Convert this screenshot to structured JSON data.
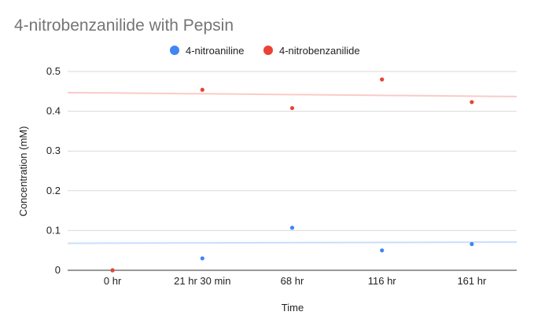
{
  "chart_data": {
    "type": "scatter",
    "title": "4-nitrobenzanilide with Pepsin",
    "xlabel": "Time",
    "ylabel": "Concentration (mM)",
    "categories": [
      "0 hr",
      "21 hr 30 min",
      "68 hr",
      "116 hr",
      "161 hr"
    ],
    "ylim": [
      0,
      0.5
    ],
    "yticks": [
      "0",
      "0.1",
      "0.2",
      "0.3",
      "0.4",
      "0.5"
    ],
    "grid": true,
    "legend_position": "top",
    "trendlines": true,
    "series": [
      {
        "name": "4-nitroaniline",
        "color": "#4285f4",
        "values": [
          0,
          0.03,
          0.107,
          0.05,
          0.066
        ],
        "trend": [
          0.068,
          0.071
        ]
      },
      {
        "name": "4-nitrobenzanilide",
        "color": "#ea4335",
        "values": [
          0,
          0.454,
          0.408,
          0.48,
          0.423
        ],
        "trend": [
          0.447,
          0.437
        ]
      }
    ]
  }
}
